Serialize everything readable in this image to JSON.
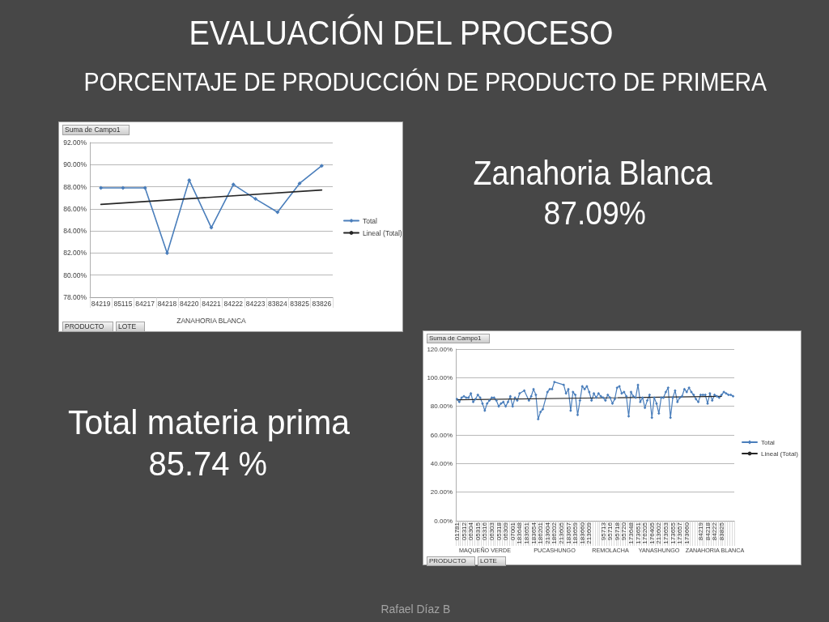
{
  "chart_data": [
    {
      "type": "other",
      "title": "EVALUACIÓN DEL PROCESO",
      "subtitle": "PORCENTAJE DE PRODUCCIÓN DE PRODUCTO DE PRIMERA",
      "annotations": [
        "Zanahoria Blanca",
        "87.09%",
        "Total materia prima",
        "85.74 %",
        "Rafael Díaz B"
      ]
    },
    {
      "type": "line",
      "categories": [
        "84219",
        "85115",
        "84217",
        "84218",
        "84220",
        "84221",
        "84222",
        "84223",
        "83824",
        "83825",
        "83826"
      ],
      "xlabel": "ZANAHORIA BLANCA",
      "annotations": [
        "Suma de Campo1",
        "PRODUCTO",
        "LOTE"
      ],
      "series": [
        {
          "name": "Total",
          "color": "#4a7ebb",
          "values": [
            87.9,
            87.9,
            87.9,
            82.0,
            88.6,
            84.3,
            88.2,
            86.9,
            85.7,
            88.3,
            89.9
          ]
        },
        {
          "name": "Lineal (Total)",
          "type": "line",
          "color": "#262626",
          "marker": "none",
          "x": [
            "84219",
            "83826"
          ],
          "values": [
            86.4,
            87.7
          ]
        }
      ],
      "ylim": [
        78,
        92
      ],
      "yticks": [
        {
          "value": 78,
          "label": "78.00%"
        },
        {
          "value": 80,
          "label": "80.00%"
        },
        {
          "value": 82,
          "label": "82.00%"
        },
        {
          "value": 84,
          "label": "84.00%"
        },
        {
          "value": 86,
          "label": "86.00%"
        },
        {
          "value": 88,
          "label": "88.00%"
        },
        {
          "value": 90,
          "label": "90.00%"
        },
        {
          "value": 92,
          "label": "92.00%"
        }
      ],
      "grid": "y",
      "legend": "right",
      "marker": "diamond"
    },
    {
      "type": "line",
      "categories": [
        "01781",
        null,
        null,
        "05312",
        null,
        null,
        "06304",
        null,
        null,
        "05315",
        null,
        null,
        "05316",
        null,
        null,
        "06303",
        null,
        null,
        "05318",
        null,
        null,
        "06309",
        null,
        null,
        "07001",
        null,
        null,
        "183648",
        null,
        null,
        "183651",
        null,
        null,
        "183654",
        null,
        null,
        "186201",
        null,
        null,
        "213604",
        null,
        null,
        "186202",
        null,
        null,
        "213605",
        null,
        null,
        "183657",
        null,
        null,
        "183659",
        null,
        null,
        "183660",
        null,
        null,
        "213609",
        null,
        null,
        null,
        null,
        null,
        "95713",
        null,
        null,
        "95716",
        null,
        null,
        "95718",
        null,
        null,
        "95720",
        null,
        null,
        "173648",
        null,
        null,
        "173651",
        null,
        null,
        "176205",
        null,
        null,
        "176405",
        null,
        null,
        "213602",
        null,
        null,
        "173653",
        null,
        null,
        "173655",
        null,
        null,
        "173657",
        null,
        null,
        "173660",
        null,
        null,
        null,
        null,
        null,
        "84219",
        null,
        null,
        "84218",
        null,
        null,
        "84222",
        null,
        null,
        "83825",
        null,
        null,
        null,
        null,
        null
      ],
      "annotations": [
        "Suma de Campo1",
        "PRODUCTO",
        "LOTE",
        {
          "text": "MAQUEÑO VERDE",
          "x": "05316"
        },
        {
          "text": "PUCASHUNGO",
          "x": "186202"
        },
        {
          "text": "REMOLACHA",
          "x": "95716"
        },
        {
          "text": "YANASHUNGO",
          "x": "213602"
        },
        {
          "text": "ZANAHORIA BLANCA",
          "x": "84222"
        }
      ],
      "series": [
        {
          "name": "Total",
          "color": "#4a7ebb",
          "values": [
            85,
            83,
            86,
            87,
            86,
            86,
            89,
            83,
            85,
            88,
            86,
            82,
            77,
            82,
            84,
            86,
            86,
            84,
            80,
            82,
            83,
            80,
            83,
            87,
            80,
            86,
            84,
            89,
            null,
            91,
            null,
            84,
            87,
            92,
            88,
            71,
            76,
            78,
            null,
            90,
            92,
            92,
            97,
            null,
            null,
            null,
            95,
            89,
            92,
            77,
            90,
            88,
            74,
            84,
            94,
            92,
            94,
            90,
            84,
            89,
            86,
            89,
            87,
            86,
            84,
            88,
            86,
            82,
            85,
            93,
            94,
            89,
            90,
            87,
            73,
            90,
            87,
            86,
            95,
            83,
            86,
            79,
            84,
            88,
            72,
            86,
            82,
            75,
            86,
            86,
            90,
            93,
            72,
            86,
            91,
            83,
            86,
            87,
            92,
            90,
            93,
            90,
            88,
            85,
            83,
            88,
            88,
            88,
            82,
            89,
            84,
            88,
            87,
            86,
            88,
            90,
            89,
            88,
            88,
            87
          ]
        },
        {
          "name": "Lineal (Total)",
          "type": "line",
          "color": "#262626",
          "marker": "none",
          "x": [
            "01781",
            "83825"
          ],
          "values": [
            84.5,
            87
          ]
        }
      ],
      "ylim": [
        0,
        120
      ],
      "yticks": [
        {
          "value": 0,
          "label": "0.00%"
        },
        {
          "value": 20,
          "label": "20.00%"
        },
        {
          "value": 40,
          "label": "40.00%"
        },
        {
          "value": 60,
          "label": "60.00%"
        },
        {
          "value": 80,
          "label": "80.00%"
        },
        {
          "value": 100,
          "label": "100.00%"
        },
        {
          "value": 120,
          "label": "120.00%"
        }
      ],
      "grid": "y",
      "legend": "right",
      "marker": "diamond"
    }
  ]
}
